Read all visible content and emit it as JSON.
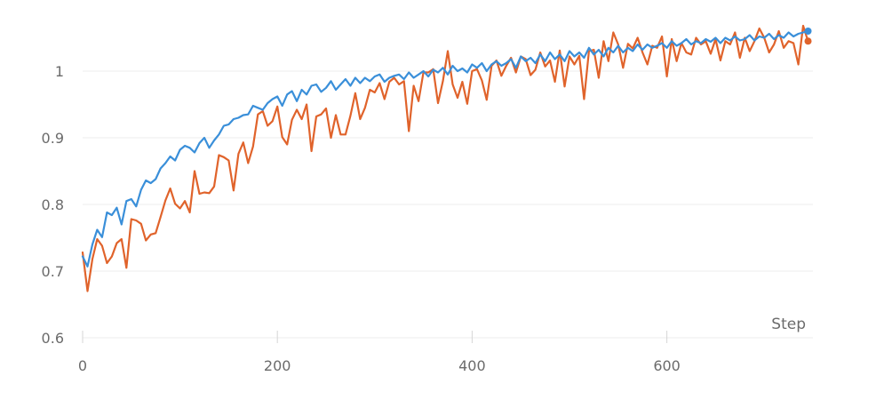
{
  "chart_data": {
    "type": "line",
    "title": "",
    "xlabel": "Step",
    "ylabel": "",
    "xlim": [
      0,
      750
    ],
    "ylim": [
      0.6,
      1.08
    ],
    "x_ticks": [
      0,
      200,
      400,
      600
    ],
    "y_ticks": [
      0.6,
      0.7,
      0.8,
      0.9,
      1
    ],
    "grid": "horizontal",
    "legend": "none",
    "series": [
      {
        "color": "#e0632b",
        "x": [
          0,
          5,
          10,
          15,
          20,
          25,
          30,
          35,
          40,
          45,
          50,
          55,
          60,
          65,
          70,
          75,
          80,
          85,
          90,
          95,
          100,
          105,
          110,
          115,
          120,
          125,
          130,
          135,
          140,
          145,
          150,
          155,
          160,
          165,
          170,
          175,
          180,
          185,
          190,
          195,
          200,
          205,
          210,
          215,
          220,
          225,
          230,
          235,
          240,
          245,
          250,
          255,
          260,
          265,
          270,
          275,
          280,
          285,
          290,
          295,
          300,
          305,
          310,
          315,
          320,
          325,
          330,
          335,
          340,
          345,
          350,
          355,
          360,
          365,
          370,
          375,
          380,
          385,
          390,
          395,
          400,
          405,
          410,
          415,
          420,
          425,
          430,
          435,
          440,
          445,
          450,
          455,
          460,
          465,
          470,
          475,
          480,
          485,
          490,
          495,
          500,
          505,
          510,
          515,
          520,
          525,
          530,
          535,
          540,
          545,
          550,
          555,
          560,
          565,
          570,
          575,
          580,
          585,
          590,
          595,
          600,
          605,
          610,
          615,
          620,
          625,
          630,
          635,
          640,
          645,
          650,
          655,
          660,
          665,
          670,
          675,
          680,
          685,
          690,
          695,
          700,
          705,
          710,
          715,
          720,
          725,
          730,
          735,
          740,
          745
        ],
        "values": [
          0.728,
          0.67,
          0.718,
          0.748,
          0.738,
          0.712,
          0.722,
          0.742,
          0.748,
          0.705,
          0.778,
          0.776,
          0.771,
          0.746,
          0.755,
          0.757,
          0.781,
          0.806,
          0.824,
          0.801,
          0.794,
          0.805,
          0.788,
          0.85,
          0.816,
          0.818,
          0.817,
          0.827,
          0.874,
          0.871,
          0.866,
          0.821,
          0.876,
          0.893,
          0.862,
          0.887,
          0.935,
          0.94,
          0.918,
          0.925,
          0.947,
          0.901,
          0.89,
          0.927,
          0.942,
          0.928,
          0.95,
          0.88,
          0.932,
          0.935,
          0.944,
          0.9,
          0.934,
          0.905,
          0.905,
          0.933,
          0.967,
          0.928,
          0.945,
          0.972,
          0.968,
          0.982,
          0.958,
          0.984,
          0.99,
          0.98,
          0.985,
          0.91,
          0.978,
          0.955,
          0.998,
          0.998,
          1.003,
          0.952,
          0.985,
          1.03,
          0.98,
          0.96,
          0.984,
          0.951,
          1.0,
          1.003,
          0.986,
          0.957,
          1.008,
          1.016,
          0.993,
          1.008,
          1.02,
          0.998,
          1.022,
          1.018,
          0.994,
          1.002,
          1.028,
          1.007,
          1.016,
          0.984,
          1.031,
          0.977,
          1.022,
          1.01,
          1.023,
          0.958,
          1.03,
          1.032,
          0.99,
          1.045,
          1.015,
          1.058,
          1.04,
          1.005,
          1.041,
          1.034,
          1.05,
          1.028,
          1.01,
          1.038,
          1.035,
          1.052,
          0.992,
          1.048,
          1.015,
          1.042,
          1.028,
          1.025,
          1.05,
          1.04,
          1.045,
          1.026,
          1.048,
          1.016,
          1.045,
          1.04,
          1.058,
          1.02,
          1.05,
          1.03,
          1.045,
          1.064,
          1.05,
          1.028,
          1.04,
          1.06,
          1.035,
          1.045,
          1.042,
          1.01,
          1.068,
          1.045
        ]
      },
      {
        "color": "#3a8fd9",
        "x": [
          0,
          5,
          10,
          15,
          20,
          25,
          30,
          35,
          40,
          45,
          50,
          55,
          60,
          65,
          70,
          75,
          80,
          85,
          90,
          95,
          100,
          105,
          110,
          115,
          120,
          125,
          130,
          135,
          140,
          145,
          150,
          155,
          160,
          165,
          170,
          175,
          180,
          185,
          190,
          195,
          200,
          205,
          210,
          215,
          220,
          225,
          230,
          235,
          240,
          245,
          250,
          255,
          260,
          265,
          270,
          275,
          280,
          285,
          290,
          295,
          300,
          305,
          310,
          315,
          320,
          325,
          330,
          335,
          340,
          345,
          350,
          355,
          360,
          365,
          370,
          375,
          380,
          385,
          390,
          395,
          400,
          405,
          410,
          415,
          420,
          425,
          430,
          435,
          440,
          445,
          450,
          455,
          460,
          465,
          470,
          475,
          480,
          485,
          490,
          495,
          500,
          505,
          510,
          515,
          520,
          525,
          530,
          535,
          540,
          545,
          550,
          555,
          560,
          565,
          570,
          575,
          580,
          585,
          590,
          595,
          600,
          605,
          610,
          615,
          620,
          625,
          630,
          635,
          640,
          645,
          650,
          655,
          660,
          665,
          670,
          675,
          680,
          685,
          690,
          695,
          700,
          705,
          710,
          715,
          720,
          725,
          730,
          735,
          740,
          745
        ],
        "values": [
          0.722,
          0.707,
          0.74,
          0.762,
          0.751,
          0.788,
          0.784,
          0.795,
          0.77,
          0.805,
          0.808,
          0.797,
          0.822,
          0.836,
          0.832,
          0.838,
          0.854,
          0.862,
          0.872,
          0.866,
          0.882,
          0.888,
          0.885,
          0.878,
          0.892,
          0.9,
          0.885,
          0.896,
          0.905,
          0.918,
          0.92,
          0.928,
          0.93,
          0.934,
          0.935,
          0.948,
          0.945,
          0.942,
          0.952,
          0.958,
          0.962,
          0.948,
          0.965,
          0.97,
          0.955,
          0.972,
          0.965,
          0.978,
          0.98,
          0.969,
          0.975,
          0.985,
          0.972,
          0.98,
          0.988,
          0.978,
          0.99,
          0.982,
          0.99,
          0.985,
          0.992,
          0.995,
          0.984,
          0.99,
          0.993,
          0.995,
          0.988,
          0.998,
          0.99,
          0.995,
          1.0,
          0.992,
          1.002,
          0.998,
          1.005,
          0.995,
          1.008,
          1.0,
          1.004,
          0.998,
          1.01,
          1.005,
          1.012,
          1.0,
          1.01,
          1.015,
          1.008,
          1.012,
          1.018,
          1.005,
          1.022,
          1.015,
          1.02,
          1.012,
          1.025,
          1.015,
          1.028,
          1.018,
          1.025,
          1.015,
          1.03,
          1.022,
          1.028,
          1.02,
          1.035,
          1.025,
          1.032,
          1.022,
          1.035,
          1.028,
          1.038,
          1.028,
          1.035,
          1.03,
          1.04,
          1.032,
          1.04,
          1.035,
          1.038,
          1.042,
          1.035,
          1.045,
          1.038,
          1.042,
          1.048,
          1.04,
          1.045,
          1.042,
          1.048,
          1.044,
          1.05,
          1.042,
          1.05,
          1.046,
          1.052,
          1.046,
          1.048,
          1.054,
          1.046,
          1.052,
          1.05,
          1.056,
          1.048,
          1.054,
          1.05,
          1.058,
          1.052,
          1.056,
          1.058,
          1.06
        ]
      }
    ]
  }
}
